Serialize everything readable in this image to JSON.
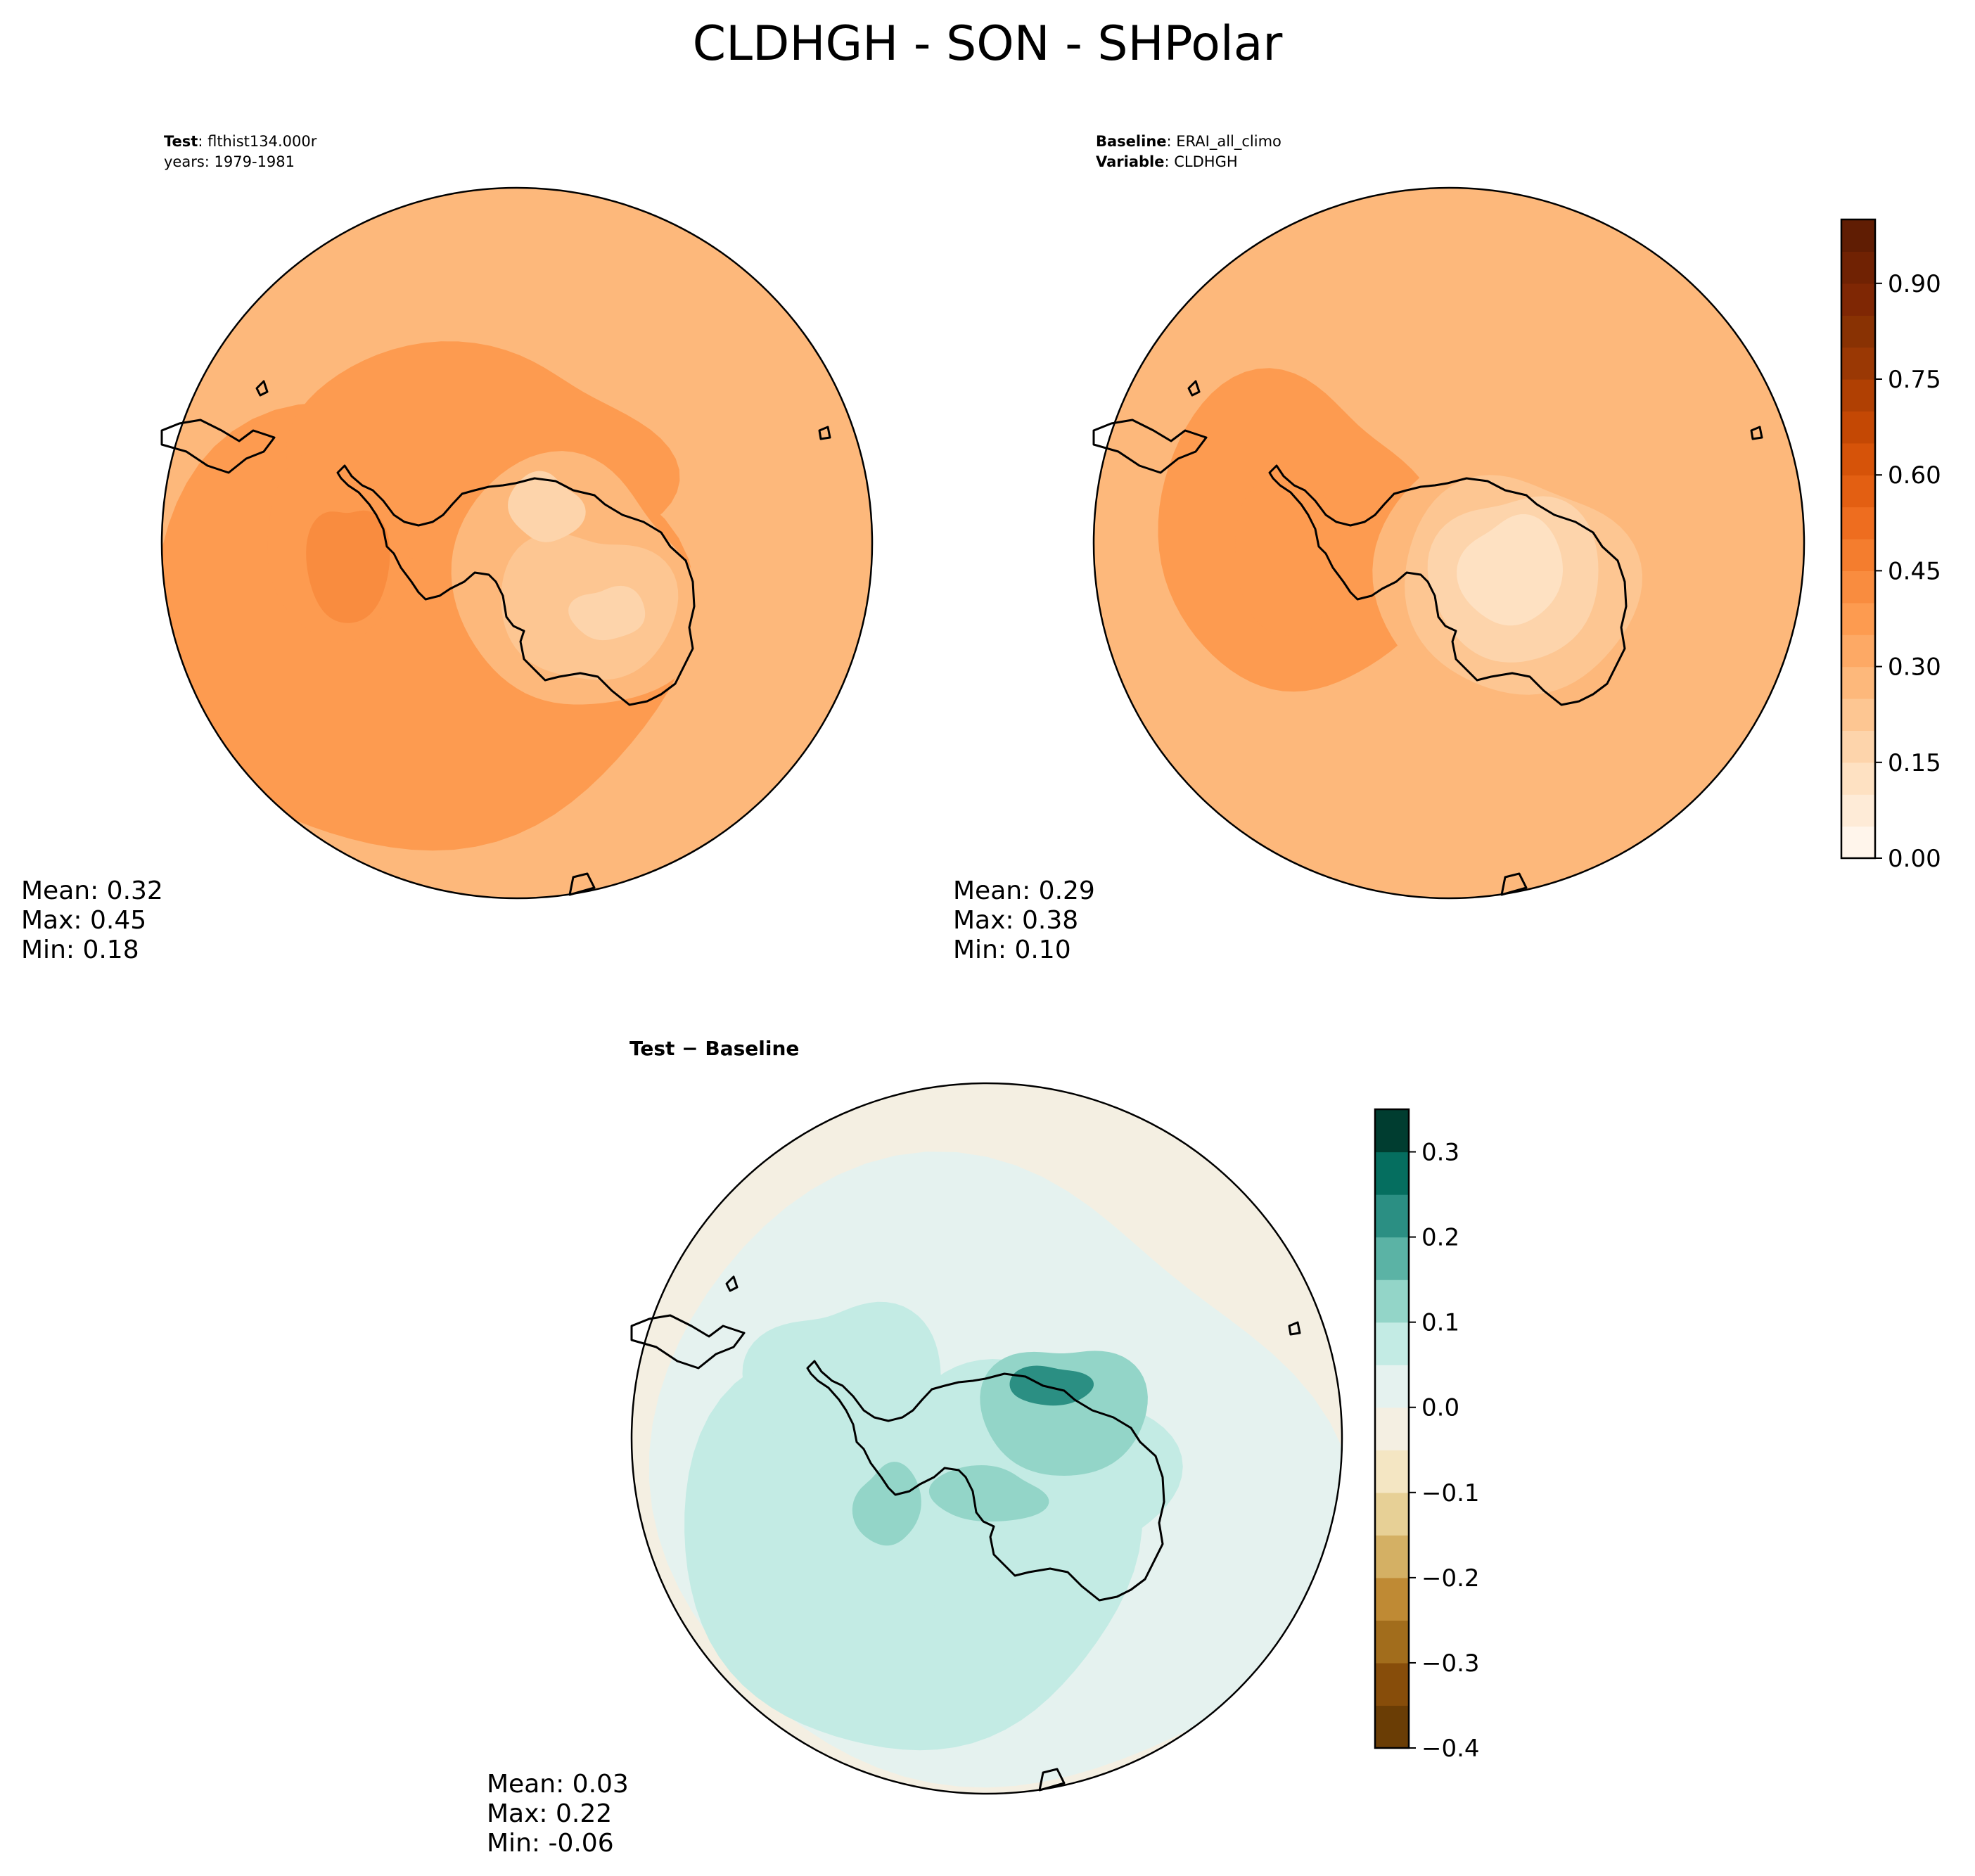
{
  "figure": {
    "title": "CLDHGH - SON - SHPolar"
  },
  "chart_data": [
    {
      "type": "heatmap",
      "panel": "test",
      "header": [
        {
          "label": "Test",
          "value": "flthist134.000r"
        },
        {
          "label": "",
          "value": "years: 1979-1981"
        }
      ],
      "stats": {
        "mean": "Mean:  0.32",
        "max": "Max:  0.45",
        "min": "Min:  0.18"
      },
      "colormap": "Oranges",
      "colorbar": "shared-right-of-baseline",
      "field_levels": {
        "background": 0.3,
        "ross_weddell_band": 0.38,
        "peninsula": 0.44,
        "plateau_east": 0.22,
        "plateau_core": 0.18
      }
    },
    {
      "type": "heatmap",
      "panel": "baseline",
      "header": [
        {
          "label": "Baseline",
          "value": "ERAI_all_climo"
        },
        {
          "label": "Variable",
          "value": "CLDHGH"
        }
      ],
      "stats": {
        "mean": "Mean:  0.29",
        "max": "Max:  0.38",
        "min": "Min:  0.10"
      },
      "colormap": "Oranges",
      "colorbar": {
        "ticks": [
          "0.00",
          "0.15",
          "0.30",
          "0.45",
          "0.60",
          "0.75",
          "0.90"
        ],
        "tick_values": [
          0.0,
          0.15,
          0.3,
          0.45,
          0.6,
          0.75,
          0.9
        ],
        "range": [
          0.0,
          1.0
        ],
        "levels": 20
      },
      "field_levels": {
        "background": 0.3,
        "peninsula": 0.38,
        "plateau_core": 0.1,
        "plateau_edge": 0.2
      }
    },
    {
      "type": "heatmap",
      "panel": "difference",
      "header": [
        {
          "label": "Test",
          "value": "Baseline",
          "separator": " − "
        }
      ],
      "stats": {
        "mean": "Mean:  0.03",
        "max": "Max:  0.22",
        "min": "Min: -0.06"
      },
      "colormap": "BrBG",
      "colorbar": {
        "ticks": [
          "0.3",
          "0.2",
          "0.1",
          "0.0",
          "−0.1",
          "−0.2",
          "−0.3",
          "−0.4"
        ],
        "tick_values": [
          0.3,
          0.2,
          0.1,
          0.0,
          -0.1,
          -0.2,
          -0.3,
          -0.4
        ],
        "range": [
          -0.4,
          0.35
        ],
        "levels": 15
      },
      "field_levels": {
        "background": 0.02,
        "ocean_band": 0.06,
        "east_plateau": 0.14,
        "east_core": 0.22,
        "north_patch": -0.04
      }
    }
  ],
  "colors": {
    "oranges": [
      "#fff5eb",
      "#feebd7",
      "#fee1c2",
      "#fdd4ab",
      "#fdc692",
      "#fdb87b",
      "#fda965",
      "#fd9b50",
      "#f98c3f",
      "#f47d2e",
      "#ee6d1f",
      "#e35f12",
      "#d65309",
      "#c44804",
      "#b04003",
      "#9a3804",
      "#893203",
      "#7f2704",
      "#702203",
      "#601d03"
    ],
    "brbg": [
      "#6a3d05",
      "#874d0a",
      "#a26d1c",
      "#bf8a34",
      "#d4b064",
      "#e7d096",
      "#f4e6c3",
      "#f4efe2",
      "#e5f2ef",
      "#c3ebe4",
      "#93d5c8",
      "#5bb3a5",
      "#2b8f83",
      "#056e5f",
      "#003d30"
    ],
    "coast": "#000000"
  }
}
